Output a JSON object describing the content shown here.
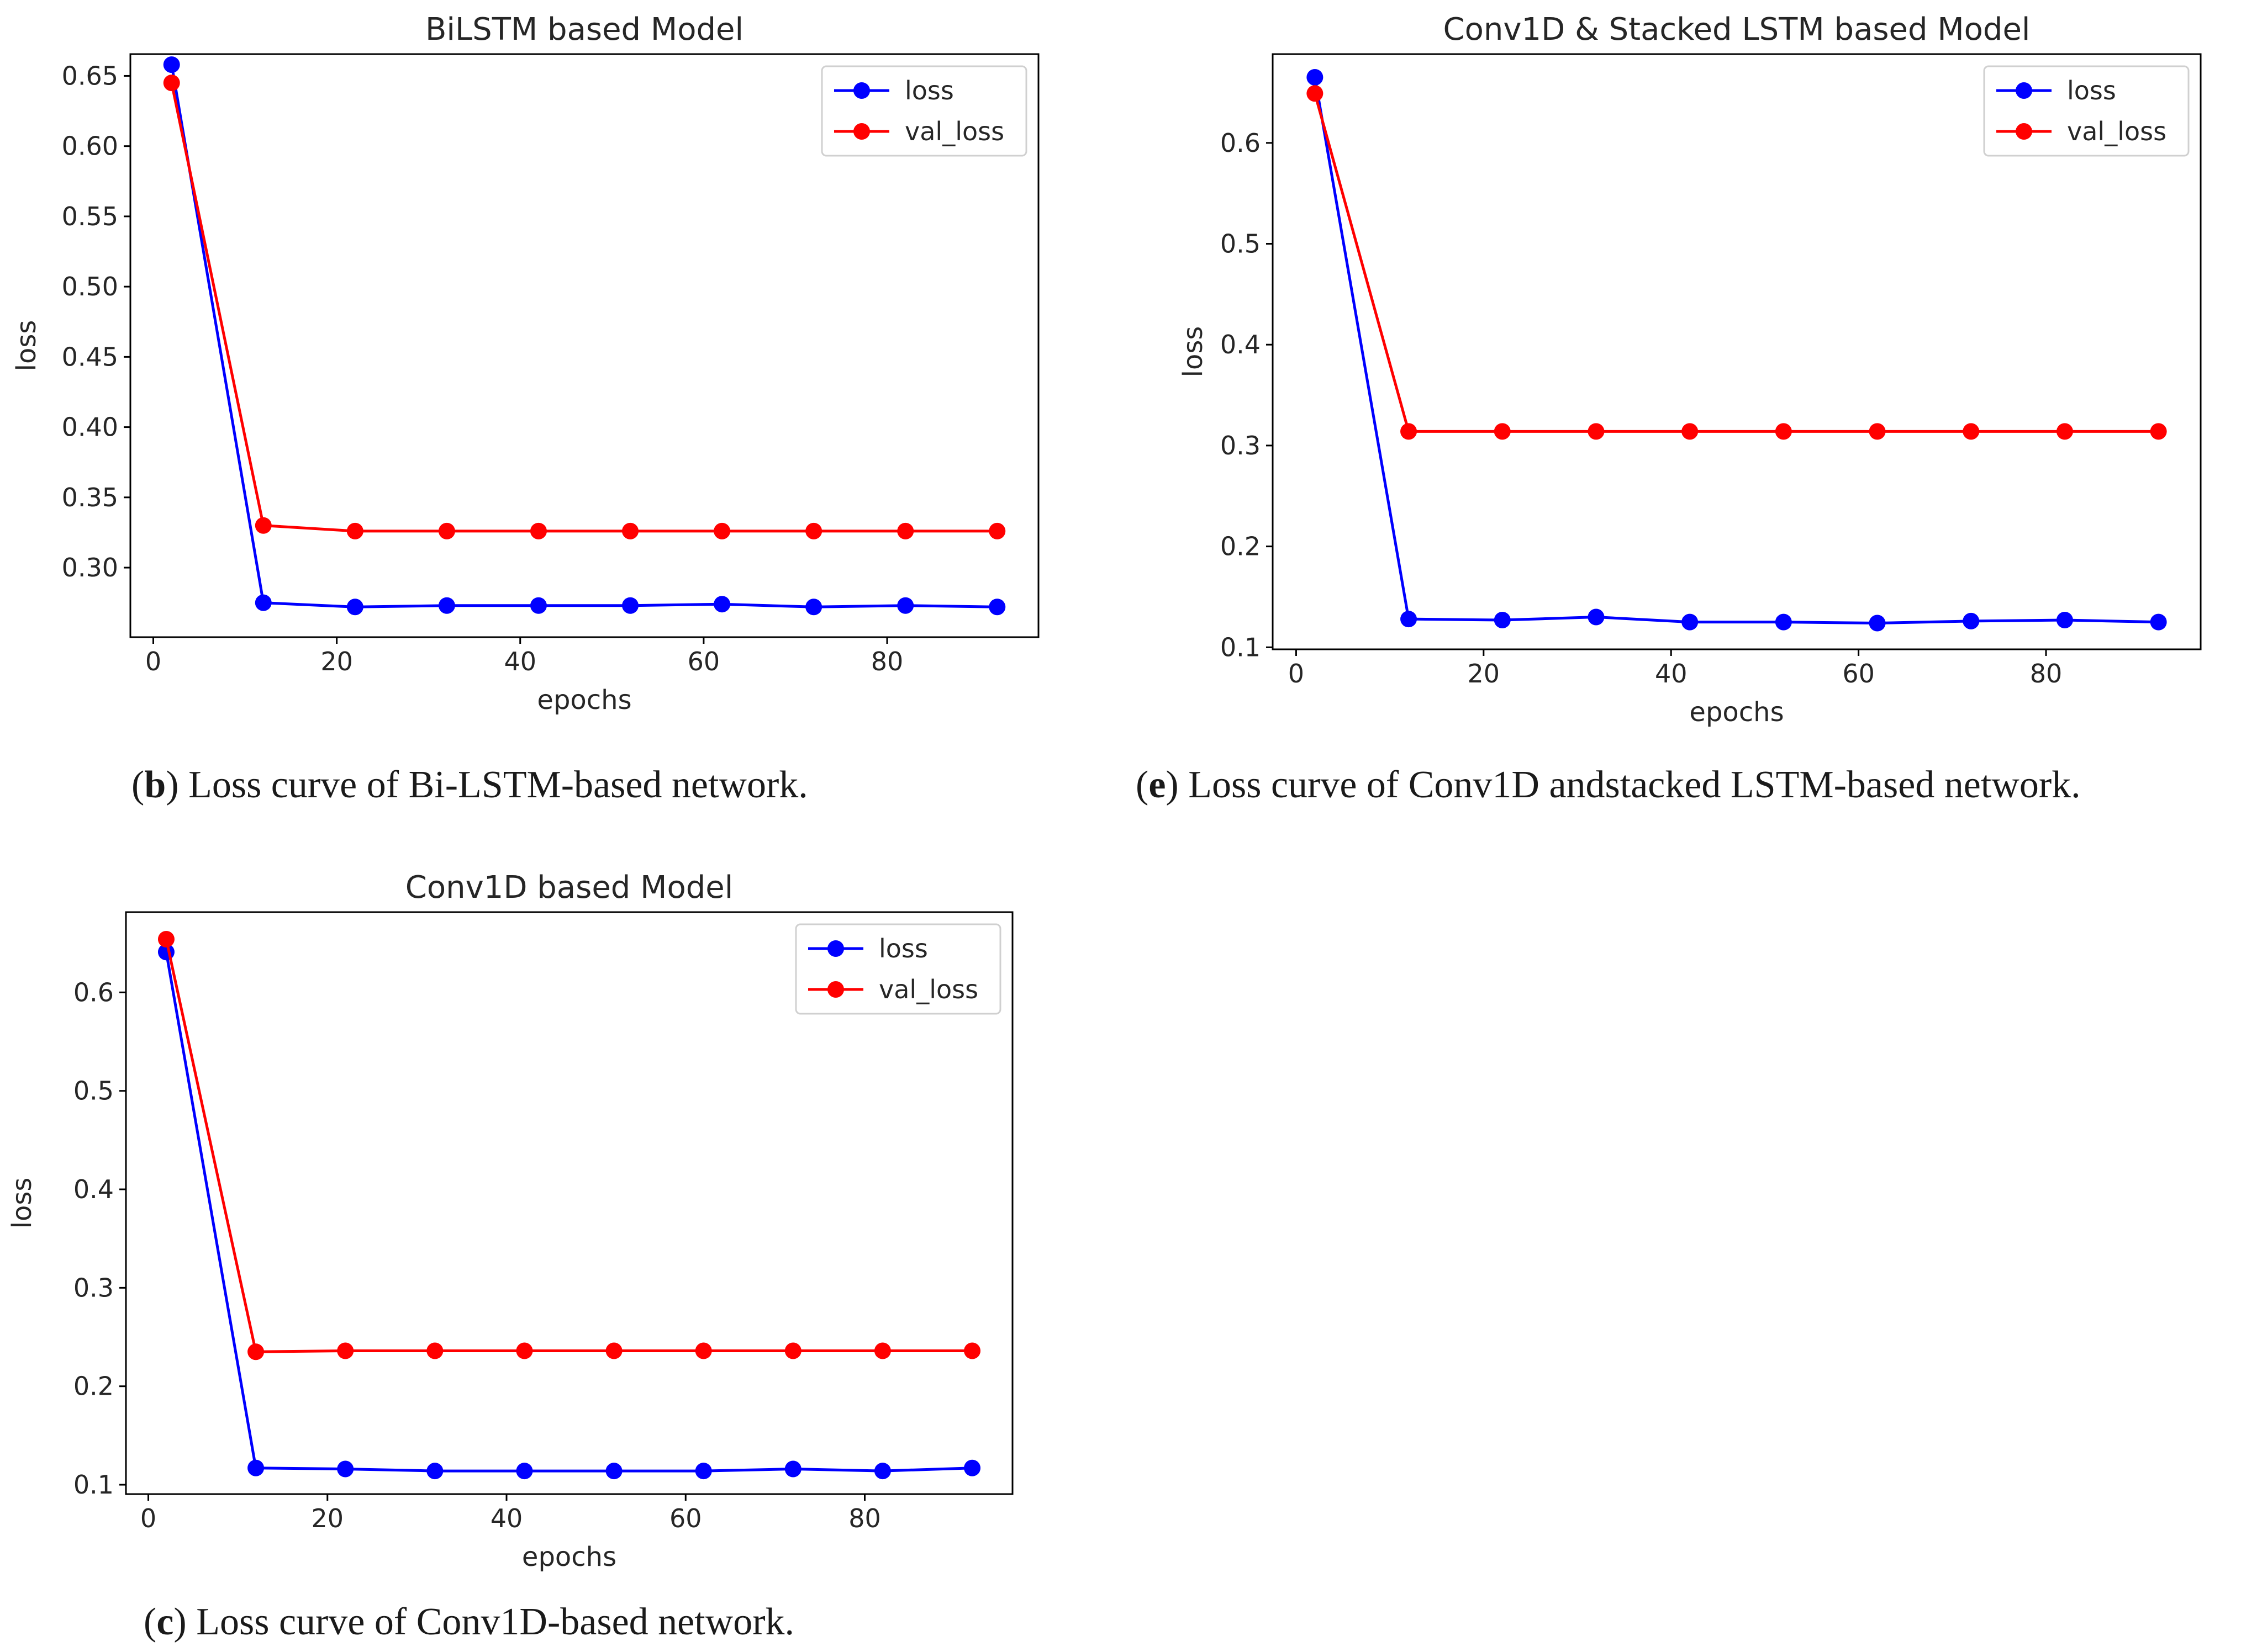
{
  "chart_data": [
    {
      "type": "line",
      "title": "BiLSTM based Model",
      "xlabel": "epochs",
      "ylabel": "loss",
      "xlim": [
        -2.5,
        96.5
      ],
      "ylim": [
        0.2505,
        0.6655
      ],
      "xticks": [
        0,
        20,
        40,
        60,
        80
      ],
      "yticks": [
        0.3,
        0.35,
        0.4,
        0.45,
        0.5,
        0.55,
        0.6,
        0.65
      ],
      "ytick_labels": [
        "0.30",
        "0.35",
        "0.40",
        "0.45",
        "0.50",
        "0.55",
        "0.60",
        "0.65"
      ],
      "x": [
        2,
        12,
        22,
        32,
        42,
        52,
        62,
        72,
        82,
        92
      ],
      "series": [
        {
          "name": "loss",
          "color": "#0000ff",
          "values": [
            0.658,
            0.275,
            0.272,
            0.273,
            0.273,
            0.273,
            0.274,
            0.272,
            0.273,
            0.272
          ]
        },
        {
          "name": "val_loss",
          "color": "#ff0000",
          "values": [
            0.645,
            0.33,
            0.326,
            0.326,
            0.326,
            0.326,
            0.326,
            0.326,
            0.326,
            0.326
          ]
        }
      ],
      "legend": "top-right",
      "caption": {
        "label": "b",
        "text": "Loss curve of Bi-LSTM-based network."
      }
    },
    {
      "type": "line",
      "title": "Conv1D & Stacked LSTM based Model",
      "xlabel": "epochs",
      "ylabel": "loss",
      "xlim": [
        -2.5,
        96.5
      ],
      "ylim": [
        0.098,
        0.688
      ],
      "xticks": [
        0,
        20,
        40,
        60,
        80
      ],
      "yticks": [
        0.1,
        0.2,
        0.3,
        0.4,
        0.5,
        0.6
      ],
      "ytick_labels": [
        "0.1",
        "0.2",
        "0.3",
        "0.4",
        "0.5",
        "0.6"
      ],
      "x": [
        2,
        12,
        22,
        32,
        42,
        52,
        62,
        72,
        82,
        92
      ],
      "series": [
        {
          "name": "loss",
          "color": "#0000ff",
          "values": [
            0.665,
            0.128,
            0.127,
            0.13,
            0.125,
            0.125,
            0.124,
            0.126,
            0.127,
            0.125
          ]
        },
        {
          "name": "val_loss",
          "color": "#ff0000",
          "values": [
            0.649,
            0.314,
            0.314,
            0.314,
            0.314,
            0.314,
            0.314,
            0.314,
            0.314,
            0.314
          ]
        }
      ],
      "legend": "top-right",
      "caption": {
        "label": "e",
        "text": "Loss curve of Conv1D andstacked LSTM-based network."
      }
    },
    {
      "type": "line",
      "title": "Conv1D based Model",
      "xlabel": "epochs",
      "ylabel": "loss",
      "xlim": [
        -2.5,
        96.5
      ],
      "ylim": [
        0.0905,
        0.6815
      ],
      "xticks": [
        0,
        20,
        40,
        60,
        80
      ],
      "yticks": [
        0.1,
        0.2,
        0.3,
        0.4,
        0.5,
        0.6
      ],
      "ytick_labels": [
        "0.1",
        "0.2",
        "0.3",
        "0.4",
        "0.5",
        "0.6"
      ],
      "x": [
        2,
        12,
        22,
        32,
        42,
        52,
        62,
        72,
        82,
        92
      ],
      "series": [
        {
          "name": "loss",
          "color": "#0000ff",
          "values": [
            0.641,
            0.117,
            0.116,
            0.114,
            0.114,
            0.114,
            0.114,
            0.116,
            0.114,
            0.117
          ]
        },
        {
          "name": "val_loss",
          "color": "#ff0000",
          "values": [
            0.654,
            0.235,
            0.236,
            0.236,
            0.236,
            0.236,
            0.236,
            0.236,
            0.236,
            0.236
          ]
        }
      ],
      "legend": "top-right",
      "caption": {
        "label": "c",
        "text": "Loss curve of Conv1D-based network."
      }
    }
  ]
}
